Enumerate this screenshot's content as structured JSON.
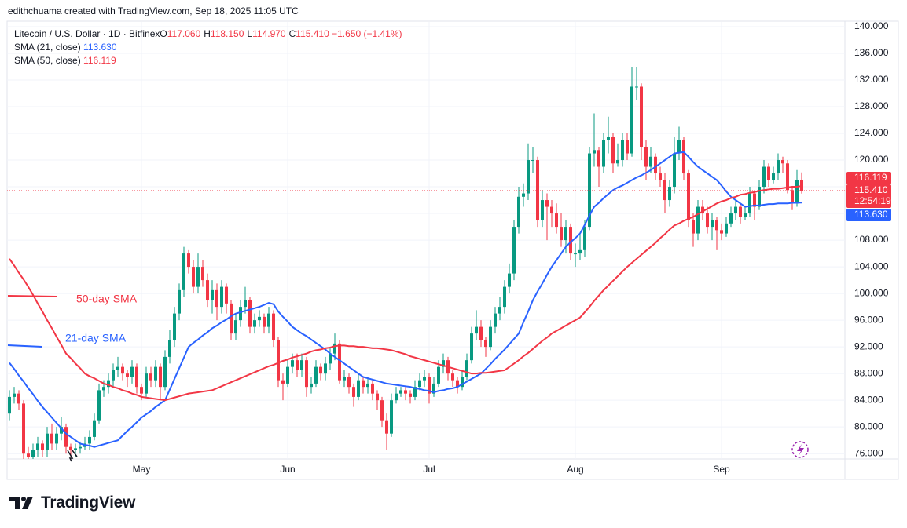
{
  "header": {
    "credit": "edithchuama created with TradingView.com, Sep 18, 2025 11:05 UTC",
    "brand": "TradingView"
  },
  "chart_data": {
    "type": "candlestick",
    "title": "Litecoin / U.S. Dollar · 1D · Bitfinex",
    "ohlc": [
      {
        "label": "O",
        "value": "117.060"
      },
      {
        "label": "H",
        "value": "118.150"
      },
      {
        "label": "L",
        "value": "114.970"
      },
      {
        "label": "C",
        "value": "115.410"
      }
    ],
    "change": "−1.650 (−1.41%)",
    "countdown": "12:54:19",
    "up_color": "#089981",
    "down_color": "#f23645",
    "categories": [
      null,
      null,
      null,
      null,
      null,
      null,
      null,
      null,
      null,
      null,
      null,
      null,
      null,
      null,
      null,
      null,
      null,
      null,
      null,
      null,
      null,
      null,
      null,
      null,
      null,
      null,
      null,
      null,
      "May",
      null,
      null,
      null,
      null,
      null,
      null,
      null,
      null,
      null,
      null,
      null,
      null,
      null,
      null,
      null,
      null,
      null,
      null,
      null,
      null,
      null,
      null,
      null,
      null,
      null,
      null,
      null,
      null,
      null,
      null,
      "Jun",
      null,
      null,
      null,
      null,
      null,
      null,
      null,
      null,
      null,
      null,
      null,
      null,
      null,
      null,
      null,
      null,
      null,
      null,
      null,
      null,
      null,
      null,
      null,
      null,
      null,
      null,
      null,
      null,
      null,
      "Jul",
      null,
      null,
      null,
      null,
      null,
      null,
      null,
      null,
      null,
      null,
      null,
      null,
      null,
      null,
      null,
      null,
      null,
      null,
      null,
      null,
      null,
      null,
      null,
      null,
      null,
      null,
      null,
      null,
      null,
      null,
      "Aug",
      null,
      null,
      null,
      null,
      null,
      null,
      null,
      null,
      null,
      null,
      null,
      null,
      null,
      null,
      null,
      null,
      null,
      null,
      null,
      null,
      null,
      null,
      null,
      null,
      null,
      null,
      null,
      null,
      null,
      null,
      "Sep",
      null,
      null,
      null,
      null,
      null,
      null,
      null,
      null,
      null,
      null,
      null,
      null,
      null,
      null,
      null,
      null,
      null
    ],
    "open": [
      82,
      84.5,
      85,
      83.5,
      76,
      75.5,
      76.5,
      77.5,
      76.5,
      79,
      77.5,
      79,
      80,
      77,
      76.5,
      76.8,
      77,
      77.5,
      78.5,
      81,
      85.5,
      86,
      87,
      88.5,
      89,
      88,
      87.5,
      89,
      86,
      85,
      88,
      87,
      89,
      86,
      90.5,
      93,
      97,
      100.5,
      106,
      104,
      101,
      104,
      102,
      99,
      100.5,
      98,
      101,
      98.5,
      94,
      96,
      98,
      99,
      95,
      96,
      96.5,
      95,
      97,
      93,
      87,
      86.5,
      89,
      90,
      88.5,
      90,
      86,
      86.5,
      89,
      88,
      89.5,
      91,
      92.5,
      87,
      87.5,
      86,
      84.5,
      87,
      86,
      86.5,
      85,
      84,
      81,
      79,
      84,
      85,
      85.5,
      85,
      84.5,
      86,
      87,
      87.5,
      85,
      86.5,
      89,
      90,
      88,
      87,
      86,
      87.5,
      90,
      94,
      95,
      93,
      92,
      95,
      97,
      98,
      101,
      103,
      110,
      114.5,
      115,
      120,
      120,
      111,
      114,
      113,
      112,
      110,
      108,
      110,
      106,
      106,
      106.5,
      110,
      121,
      121.5,
      119,
      123,
      123.5,
      119.5,
      120,
      123,
      121,
      131,
      131,
      122,
      119,
      120.5,
      118,
      117,
      114,
      116,
      121,
      123,
      118,
      111,
      109,
      113,
      112,
      110,
      111,
      109.5,
      109,
      110.5,
      112,
      113,
      111.5,
      112,
      115,
      113,
      116,
      119,
      117,
      118,
      120,
      119.5,
      115.5,
      113.5,
      117.06
    ],
    "high": [
      85.5,
      86,
      85.5,
      84,
      77,
      77.5,
      78.5,
      78,
      80,
      80.5,
      80,
      81.5,
      80.5,
      77.5,
      77.5,
      77.8,
      78.5,
      79.5,
      82,
      86.5,
      87,
      88,
      89.5,
      90.5,
      89.5,
      88.5,
      90,
      89.5,
      86.5,
      89,
      89,
      90,
      89.5,
      91.5,
      94.5,
      98,
      101.5,
      107,
      106.5,
      105,
      106,
      105,
      103,
      102,
      101.5,
      102,
      101.5,
      99,
      97,
      99,
      101,
      99.5,
      97,
      97.5,
      97,
      98,
      97.5,
      93.5,
      88,
      90,
      91,
      91,
      91,
      90.5,
      87.5,
      90,
      89.5,
      90.5,
      92,
      94,
      93,
      88.5,
      88,
      86.5,
      88,
      87.5,
      87.5,
      87,
      85.5,
      84.5,
      82,
      85,
      86,
      86,
      86,
      85.5,
      87,
      88,
      88.5,
      88,
      87.5,
      90,
      91,
      90.5,
      88.5,
      87.5,
      88.5,
      91,
      95,
      97.5,
      96,
      93.5,
      96,
      98,
      99.5,
      102,
      104.5,
      111,
      116,
      116.5,
      122.5,
      122,
      120.5,
      115.5,
      115,
      114,
      113.5,
      112,
      111,
      110.5,
      107.5,
      109,
      111,
      122,
      127,
      122,
      124,
      126.5,
      124,
      122.5,
      124,
      124,
      134,
      134,
      131.5,
      123,
      122,
      121,
      119,
      118,
      117,
      123.5,
      125,
      123.5,
      118.5,
      112,
      114,
      114,
      113,
      112,
      111.5,
      110.5,
      111.5,
      113,
      114,
      113.5,
      113,
      116,
      115.5,
      117,
      120,
      119.5,
      119,
      121,
      120.5,
      120,
      116,
      118.5,
      118.15
    ],
    "low": [
      81,
      83.5,
      82.5,
      75,
      75,
      75,
      75.5,
      75.5,
      75.5,
      76.5,
      76.5,
      78,
      76,
      75.5,
      75.5,
      76,
      76.5,
      76.5,
      78,
      80.5,
      84.5,
      85,
      86,
      87.5,
      87,
      86,
      86.5,
      85,
      84,
      84.5,
      86,
      86,
      84,
      85.5,
      89.5,
      92,
      96,
      99.5,
      103,
      100,
      100,
      101,
      98,
      97,
      96,
      97,
      97,
      93,
      93,
      95,
      97,
      94,
      94,
      95,
      94,
      94,
      92,
      86,
      84,
      86,
      88,
      87.5,
      87.5,
      84.5,
      85,
      86,
      87,
      87,
      88.5,
      90,
      86.5,
      86,
      85,
      83,
      84,
      85,
      85,
      84,
      82.5,
      80,
      76.5,
      78.5,
      83.5,
      84.5,
      84,
      83.5,
      84,
      85.5,
      86,
      83.5,
      84.5,
      86,
      88,
      87,
      86,
      85,
      85.5,
      87,
      89.5,
      93,
      92,
      90.5,
      91.5,
      94,
      96,
      97,
      100,
      102,
      109,
      113,
      114,
      118,
      110,
      110,
      108,
      110,
      109,
      107,
      106,
      105,
      104,
      105,
      105.5,
      109.5,
      119,
      116,
      118,
      121,
      118,
      119,
      119,
      120,
      120.5,
      129,
      120,
      117,
      118,
      117,
      116,
      112,
      113,
      115,
      120,
      117,
      110,
      107,
      108,
      111,
      109,
      108,
      106.5,
      108,
      108.5,
      110,
      111,
      110.5,
      111,
      111.5,
      111,
      112.5,
      115,
      116,
      116.5,
      117,
      118,
      115,
      112.5,
      113,
      114.97
    ],
    "close": [
      84.5,
      85,
      83.5,
      76,
      75.5,
      76.5,
      77.5,
      76.5,
      79,
      77.5,
      79,
      80,
      77,
      76.5,
      76.8,
      77,
      77.5,
      78.5,
      81,
      85.5,
      86,
      87,
      88.5,
      89,
      88,
      87.5,
      89,
      86,
      85,
      88,
      87,
      89,
      86,
      90.5,
      93,
      97,
      100.5,
      106,
      104,
      101,
      104,
      102,
      99,
      100.5,
      98,
      101,
      98.5,
      94,
      96,
      98,
      99,
      95,
      96,
      96.5,
      95,
      97,
      93,
      87,
      86.5,
      89,
      90,
      88.5,
      90,
      86,
      86.5,
      89,
      88,
      89.5,
      91,
      92.5,
      87,
      87.5,
      86,
      84.5,
      87,
      86,
      86.5,
      85,
      84,
      81,
      79,
      84,
      85,
      85.5,
      85,
      84.5,
      86,
      87,
      87.5,
      85,
      86.5,
      89,
      90,
      88,
      87,
      86,
      87.5,
      90,
      94,
      95,
      93,
      92,
      95,
      97,
      98,
      101,
      103,
      110,
      114.5,
      115,
      120,
      120,
      111,
      114,
      113,
      112,
      110,
      108,
      110,
      106,
      106,
      106.5,
      110,
      121,
      121.5,
      119,
      123,
      123.5,
      119.5,
      120,
      123,
      121,
      131,
      131,
      122,
      119,
      120.5,
      118,
      117,
      114,
      116,
      121,
      123,
      118,
      111,
      109,
      113,
      112,
      110,
      111,
      109.5,
      109,
      110.5,
      112,
      113,
      111.5,
      112,
      115,
      113,
      116,
      119,
      117,
      118,
      120,
      119.5,
      115.5,
      113.5,
      117.06,
      115.41
    ],
    "series": [
      {
        "name": "SMA (21, close)",
        "color": "#2962ff",
        "value_label": "113.630",
        "values": [
          89.6,
          88.7,
          87.7,
          86.8,
          85.8,
          84.9,
          83.9,
          83,
          82.2,
          81.4,
          80.6,
          79.8,
          79,
          78.5,
          78,
          77.5,
          77.3,
          77.2,
          77,
          77.2,
          77.4,
          77.6,
          77.8,
          78,
          78.7,
          79.4,
          80,
          80.7,
          81.4,
          81.9,
          82.4,
          83,
          83.5,
          84,
          85.6,
          87.2,
          88.8,
          90.4,
          92,
          92.6,
          93.1,
          93.7,
          94.2,
          94.8,
          95.2,
          95.7,
          96.1,
          96.6,
          97,
          97.2,
          97.4,
          97.6,
          97.8,
          98,
          98.3,
          98.6,
          98.4,
          97.3,
          96.5,
          95.8,
          95,
          94.5,
          94,
          93.6,
          93.1,
          92.6,
          92.1,
          91.6,
          91,
          90.5,
          90,
          89.5,
          89,
          88.5,
          88,
          87.5,
          87.3,
          87.1,
          86.9,
          86.7,
          86.5,
          86.4,
          86.3,
          86.2,
          86.1,
          86,
          85.8,
          85.7,
          85.5,
          85.4,
          85.2,
          85.4,
          85.5,
          85.7,
          85.8,
          86,
          86.4,
          86.8,
          87.2,
          87.6,
          88,
          88.7,
          89.4,
          90.2,
          90.9,
          91.6,
          92.4,
          93.2,
          94,
          95.7,
          97.3,
          99,
          100.3,
          101.5,
          102.8,
          104,
          105,
          106,
          107,
          107.7,
          108.3,
          109,
          110.3,
          111.7,
          113,
          113.6,
          114.3,
          114.9,
          115.5,
          115.9,
          116.2,
          116.6,
          117,
          117.4,
          117.7,
          118.1,
          118.5,
          119,
          119.5,
          120,
          120.5,
          121,
          121.1,
          121.2,
          120.5,
          119.7,
          119,
          118.5,
          118,
          117.5,
          117,
          116.2,
          115.3,
          114.5,
          114,
          113.5,
          113,
          113.1,
          113.2,
          113.2,
          113.3,
          113.4,
          113.4,
          113.5,
          113.5,
          113.5,
          113.6,
          113.6,
          113.63
        ]
      },
      {
        "name": "SMA (50, close)",
        "color": "#f23645",
        "value_label": "116.119",
        "values": [
          105.2,
          104.2,
          103.1,
          102.1,
          101,
          99.8,
          98.5,
          97.3,
          96,
          94.8,
          93.5,
          92.3,
          91,
          90.3,
          89.5,
          88.8,
          88,
          87.6,
          87.3,
          86.9,
          86.5,
          86.3,
          86,
          85.8,
          85.5,
          85.3,
          85,
          84.8,
          84.5,
          84.4,
          84.3,
          84.2,
          84.1,
          84,
          84.2,
          84.4,
          84.6,
          84.8,
          85,
          85.1,
          85.2,
          85.3,
          85.4,
          85.5,
          85.8,
          86.1,
          86.4,
          86.7,
          87,
          87.3,
          87.6,
          87.9,
          88.2,
          88.5,
          88.8,
          89.1,
          89.3,
          89.6,
          89.9,
          90.1,
          90.4,
          90.6,
          90.8,
          91,
          91.3,
          91.5,
          91.6,
          91.8,
          91.9,
          92.1,
          92.2,
          92.2,
          92.1,
          92.1,
          92,
          92,
          91.9,
          91.8,
          91.8,
          91.7,
          91.6,
          91.5,
          91.3,
          91.1,
          90.9,
          90.6,
          90.4,
          90.2,
          90,
          89.8,
          89.6,
          89.4,
          89.2,
          89,
          88.8,
          88.6,
          88.4,
          88.2,
          88,
          88,
          88.1,
          88.1,
          88.2,
          88.3,
          88.4,
          88.5,
          89,
          89.5,
          90,
          90.6,
          91.1,
          91.7,
          92.3,
          92.9,
          93.4,
          94,
          94.4,
          94.8,
          95.2,
          95.6,
          96,
          96.4,
          97.2,
          98,
          98.9,
          99.7,
          100.5,
          101.2,
          101.9,
          102.6,
          103.3,
          104,
          104.6,
          105.2,
          105.8,
          106.4,
          107,
          107.6,
          108.3,
          108.9,
          109.6,
          110.2,
          110.5,
          110.9,
          111.2,
          111.5,
          111.9,
          112.3,
          112.7,
          113.1,
          113.5,
          113.8,
          114,
          114.3,
          114.5,
          114.8,
          114.9,
          115.1,
          115.2,
          115.4,
          115.5,
          115.6,
          115.7,
          115.7,
          115.8,
          115.9,
          116,
          116,
          116.119
        ]
      }
    ],
    "annotations": [
      {
        "text": "50-day SMA",
        "color": "#f23645"
      },
      {
        "text": "21-day SMA",
        "color": "#2962ff"
      }
    ],
    "ylim": [
      75.2,
      140.7
    ],
    "yticks": [
      {
        "value": 76,
        "label": "76.000"
      },
      {
        "value": 80,
        "label": "80.000"
      },
      {
        "value": 84,
        "label": "84.000"
      },
      {
        "value": 88,
        "label": "88.000"
      },
      {
        "value": 92,
        "label": "92.000"
      },
      {
        "value": 96,
        "label": "96.000"
      },
      {
        "value": 100,
        "label": "100.000"
      },
      {
        "value": 104,
        "label": "104.000"
      },
      {
        "value": 108,
        "label": "108.000"
      },
      {
        "value": 112,
        "label": "112.000"
      },
      {
        "value": 116,
        "label": "116.000"
      },
      {
        "value": 120,
        "label": "120.000"
      },
      {
        "value": 124,
        "label": "124.000"
      },
      {
        "value": 128,
        "label": "128.000"
      },
      {
        "value": 132,
        "label": "132.000"
      },
      {
        "value": 136,
        "label": "136.000"
      },
      {
        "value": 140,
        "label": "140.000"
      }
    ],
    "grid": true
  }
}
